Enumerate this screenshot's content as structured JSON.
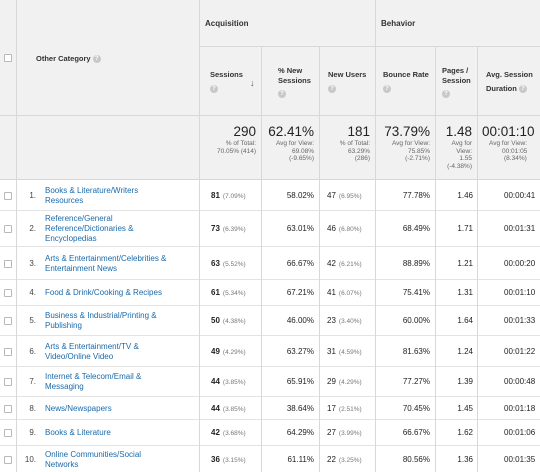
{
  "table": {
    "dimension_header": "Other Category",
    "groups": {
      "acquisition": "Acquisition",
      "behavior": "Behavior"
    },
    "columns": {
      "sessions": "Sessions",
      "pct_new_1": "% New",
      "pct_new_2": "Sessions",
      "new_users": "New Users",
      "bounce_rate": "Bounce Rate",
      "pages_1": "Pages /",
      "pages_2": "Session",
      "avg_1": "Avg. Session",
      "avg_2": "Duration"
    },
    "help_icon": "question-icon",
    "sort_icon": "arrow-down-icon",
    "summary": {
      "sessions": {
        "value": "290",
        "sub1": "% of Total:",
        "sub2": "70.05% (414)"
      },
      "pct_new": {
        "value": "62.41%",
        "sub1": "Avg for View:",
        "sub2": "69.08%",
        "sub3": "(-9.65%)"
      },
      "new_users": {
        "value": "181",
        "sub1": "% of Total:",
        "sub2": "63.29%",
        "sub3": "(286)"
      },
      "bounce": {
        "value": "73.79%",
        "sub1": "Avg for View:",
        "sub2": "75.85%",
        "sub3": "(-2.71%)"
      },
      "pages": {
        "value": "1.48",
        "sub1": "Avg for View:",
        "sub2": "1.55",
        "sub3": "(-4.38%)"
      },
      "duration": {
        "value": "00:01:10",
        "sub1": "Avg for View:",
        "sub2": "00:01:05",
        "sub3": "(8.34%)"
      }
    },
    "rows": [
      {
        "idx": "1.",
        "line1": "Books & Literature/Writers",
        "line2": "Resources",
        "line3": "",
        "sessions": "81",
        "sessions_pct": "(7.09%)",
        "pct_new": "58.02%",
        "new_users": "47",
        "new_users_pct": "(6.95%)",
        "bounce": "77.78%",
        "pages": "1.46",
        "duration": "00:00:41"
      },
      {
        "idx": "2.",
        "line1": "Reference/General",
        "line2": "Reference/Dictionaries &",
        "line3": "Encyclopedias",
        "sessions": "73",
        "sessions_pct": "(6.39%)",
        "pct_new": "63.01%",
        "new_users": "46",
        "new_users_pct": "(6.80%)",
        "bounce": "68.49%",
        "pages": "1.71",
        "duration": "00:01:31"
      },
      {
        "idx": "3.",
        "line1": "Arts & Entertainment/Celebrities &",
        "line2": "Entertainment News",
        "line3": "",
        "sessions": "63",
        "sessions_pct": "(5.52%)",
        "pct_new": "66.67%",
        "new_users": "42",
        "new_users_pct": "(6.21%)",
        "bounce": "88.89%",
        "pages": "1.21",
        "duration": "00:00:20"
      },
      {
        "idx": "4.",
        "line1": "Food & Drink/Cooking & Recipes",
        "line2": "",
        "line3": "",
        "sessions": "61",
        "sessions_pct": "(5.34%)",
        "pct_new": "67.21%",
        "new_users": "41",
        "new_users_pct": "(6.07%)",
        "bounce": "75.41%",
        "pages": "1.31",
        "duration": "00:01:10"
      },
      {
        "idx": "5.",
        "line1": "Business & Industrial/Printing &",
        "line2": "Publishing",
        "line3": "",
        "sessions": "50",
        "sessions_pct": "(4.38%)",
        "pct_new": "46.00%",
        "new_users": "23",
        "new_users_pct": "(3.40%)",
        "bounce": "60.00%",
        "pages": "1.64",
        "duration": "00:01:33"
      },
      {
        "idx": "6.",
        "line1": "Arts & Entertainment/TV &",
        "line2": "Video/Online Video",
        "line3": "",
        "sessions": "49",
        "sessions_pct": "(4.29%)",
        "pct_new": "63.27%",
        "new_users": "31",
        "new_users_pct": "(4.59%)",
        "bounce": "81.63%",
        "pages": "1.24",
        "duration": "00:01:22"
      },
      {
        "idx": "7.",
        "line1": "Internet & Telecom/Email &",
        "line2": "Messaging",
        "line3": "",
        "sessions": "44",
        "sessions_pct": "(3.85%)",
        "pct_new": "65.91%",
        "new_users": "29",
        "new_users_pct": "(4.29%)",
        "bounce": "77.27%",
        "pages": "1.39",
        "duration": "00:00:48"
      },
      {
        "idx": "8.",
        "line1": "News/Newspapers",
        "line2": "",
        "line3": "",
        "sessions": "44",
        "sessions_pct": "(3.85%)",
        "pct_new": "38.64%",
        "new_users": "17",
        "new_users_pct": "(2.51%)",
        "bounce": "70.45%",
        "pages": "1.45",
        "duration": "00:01:18"
      },
      {
        "idx": "9.",
        "line1": "Books & Literature",
        "line2": "",
        "line3": "",
        "sessions": "42",
        "sessions_pct": "(3.68%)",
        "pct_new": "64.29%",
        "new_users": "27",
        "new_users_pct": "(3.99%)",
        "bounce": "66.67%",
        "pages": "1.62",
        "duration": "00:01:06"
      },
      {
        "idx": "10.",
        "line1": "Online Communities/Social",
        "line2": "Networks",
        "line3": "",
        "sessions": "36",
        "sessions_pct": "(3.15%)",
        "pct_new": "61.11%",
        "new_users": "22",
        "new_users_pct": "(3.25%)",
        "bounce": "80.56%",
        "pages": "1.36",
        "duration": "00:01:35"
      }
    ]
  }
}
